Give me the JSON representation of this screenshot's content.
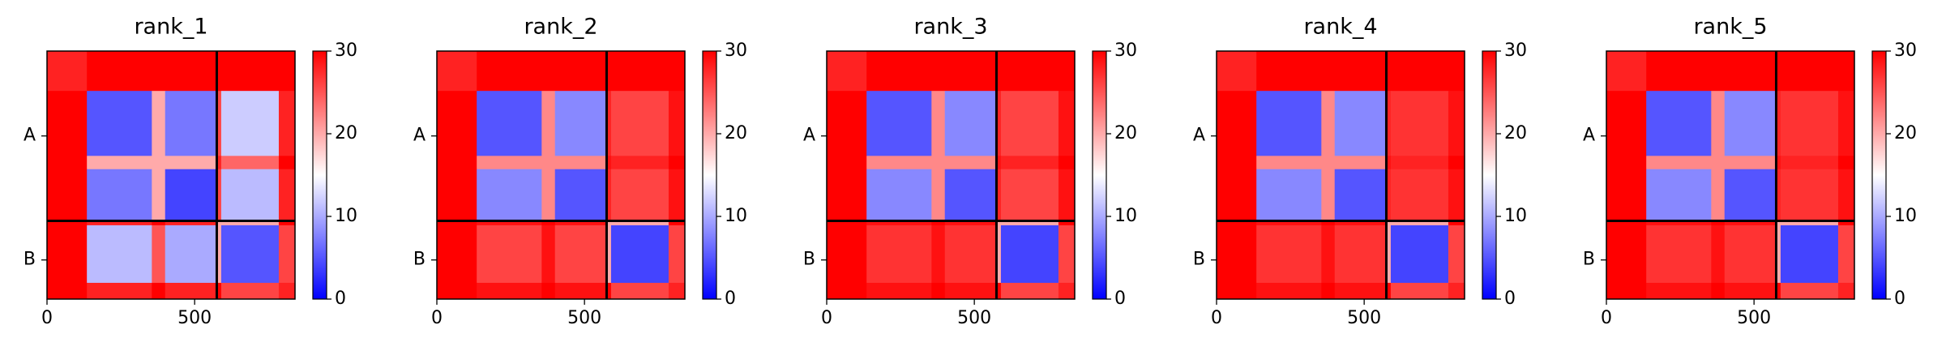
{
  "chart_data": [
    {
      "type": "heatmap",
      "title": "rank_1",
      "edges": [
        0,
        135,
        355,
        400,
        575,
        590,
        785,
        840
      ],
      "values": [
        [
          28,
          30,
          30,
          30,
          30,
          30,
          30
        ],
        [
          30,
          5,
          20,
          7,
          26,
          12,
          28
        ],
        [
          30,
          20,
          20,
          20,
          28,
          24,
          30
        ],
        [
          30,
          7,
          20,
          4,
          26,
          11,
          28
        ],
        [
          30,
          28,
          30,
          28,
          20,
          20,
          30
        ],
        [
          30,
          11,
          25,
          10,
          20,
          5,
          26
        ],
        [
          30,
          28,
          30,
          28,
          30,
          26,
          28
        ]
      ],
      "xlim": [
        0,
        840
      ],
      "ylim": [
        840,
        0
      ],
      "xticks": [
        0,
        500
      ],
      "yticks": [
        {
          "value": 287.5,
          "label": "A"
        },
        {
          "value": 707.5,
          "label": "B"
        }
      ],
      "chain_breaks": [
        575
      ],
      "clim": [
        0,
        30
      ],
      "cticks": [
        0,
        10,
        20,
        30
      ],
      "colormap": [
        "#0000ff",
        "#ffffff",
        "#ff0000"
      ]
    },
    {
      "type": "heatmap",
      "title": "rank_2",
      "edges": [
        0,
        135,
        355,
        400,
        575,
        590,
        785,
        840
      ],
      "values": [
        [
          28,
          30,
          30,
          30,
          30,
          30,
          30
        ],
        [
          30,
          5,
          22,
          8,
          28,
          26,
          29
        ],
        [
          30,
          22,
          22,
          22,
          29,
          28,
          30
        ],
        [
          30,
          8,
          22,
          5,
          28,
          26,
          29
        ],
        [
          30,
          29,
          30,
          29,
          20,
          20,
          30
        ],
        [
          30,
          26,
          29,
          26,
          20,
          4,
          26
        ],
        [
          30,
          29,
          30,
          29,
          30,
          26,
          28
        ]
      ],
      "xlim": [
        0,
        840
      ],
      "ylim": [
        840,
        0
      ],
      "xticks": [
        0,
        500
      ],
      "yticks": [
        {
          "value": 287.5,
          "label": "A"
        },
        {
          "value": 707.5,
          "label": "B"
        }
      ],
      "chain_breaks": [
        575
      ],
      "clim": [
        0,
        30
      ],
      "cticks": [
        0,
        10,
        20,
        30
      ],
      "colormap": [
        "#0000ff",
        "#ffffff",
        "#ff0000"
      ]
    },
    {
      "type": "heatmap",
      "title": "rank_3",
      "edges": [
        0,
        135,
        355,
        400,
        575,
        590,
        785,
        840
      ],
      "values": [
        [
          28,
          30,
          30,
          30,
          30,
          30,
          30
        ],
        [
          30,
          5,
          22,
          8,
          28,
          26,
          29
        ],
        [
          30,
          22,
          22,
          22,
          29,
          28,
          30
        ],
        [
          30,
          8,
          22,
          5,
          28,
          26,
          29
        ],
        [
          30,
          29,
          30,
          29,
          20,
          20,
          30
        ],
        [
          30,
          27,
          29,
          27,
          20,
          4,
          26
        ],
        [
          30,
          29,
          30,
          29,
          30,
          26,
          28
        ]
      ],
      "xlim": [
        0,
        840
      ],
      "ylim": [
        840,
        0
      ],
      "xticks": [
        0,
        500
      ],
      "yticks": [
        {
          "value": 287.5,
          "label": "A"
        },
        {
          "value": 707.5,
          "label": "B"
        }
      ],
      "chain_breaks": [
        575
      ],
      "clim": [
        0,
        30
      ],
      "cticks": [
        0,
        10,
        20,
        30
      ],
      "colormap": [
        "#0000ff",
        "#ffffff",
        "#ff0000"
      ]
    },
    {
      "type": "heatmap",
      "title": "rank_4",
      "edges": [
        0,
        135,
        355,
        400,
        575,
        590,
        785,
        840
      ],
      "values": [
        [
          28,
          30,
          30,
          30,
          30,
          30,
          30
        ],
        [
          30,
          5,
          22,
          8,
          28,
          27,
          29
        ],
        [
          30,
          22,
          22,
          22,
          29,
          28,
          30
        ],
        [
          30,
          8,
          22,
          5,
          28,
          27,
          29
        ],
        [
          30,
          29,
          30,
          29,
          20,
          20,
          30
        ],
        [
          30,
          27,
          29,
          27,
          20,
          4,
          26
        ],
        [
          30,
          29,
          30,
          29,
          30,
          26,
          28
        ]
      ],
      "xlim": [
        0,
        840
      ],
      "ylim": [
        840,
        0
      ],
      "xticks": [
        0,
        500
      ],
      "yticks": [
        {
          "value": 287.5,
          "label": "A"
        },
        {
          "value": 707.5,
          "label": "B"
        }
      ],
      "chain_breaks": [
        575
      ],
      "clim": [
        0,
        30
      ],
      "cticks": [
        0,
        10,
        20,
        30
      ],
      "colormap": [
        "#0000ff",
        "#ffffff",
        "#ff0000"
      ]
    },
    {
      "type": "heatmap",
      "title": "rank_5",
      "edges": [
        0,
        135,
        355,
        400,
        575,
        590,
        785,
        840
      ],
      "values": [
        [
          28,
          30,
          30,
          30,
          30,
          30,
          30
        ],
        [
          30,
          5,
          22,
          8,
          28,
          27,
          29
        ],
        [
          30,
          22,
          22,
          22,
          29,
          28,
          30
        ],
        [
          30,
          8,
          22,
          5,
          28,
          27,
          29
        ],
        [
          30,
          29,
          30,
          29,
          20,
          20,
          30
        ],
        [
          30,
          27,
          29,
          27,
          20,
          4,
          26
        ],
        [
          30,
          29,
          30,
          29,
          30,
          26,
          28
        ]
      ],
      "xlim": [
        0,
        840
      ],
      "ylim": [
        840,
        0
      ],
      "xticks": [
        0,
        500
      ],
      "yticks": [
        {
          "value": 287.5,
          "label": "A"
        },
        {
          "value": 707.5,
          "label": "B"
        }
      ],
      "chain_breaks": [
        575
      ],
      "clim": [
        0,
        30
      ],
      "cticks": [
        0,
        10,
        20,
        30
      ],
      "colormap": [
        "#0000ff",
        "#ffffff",
        "#ff0000"
      ]
    }
  ]
}
